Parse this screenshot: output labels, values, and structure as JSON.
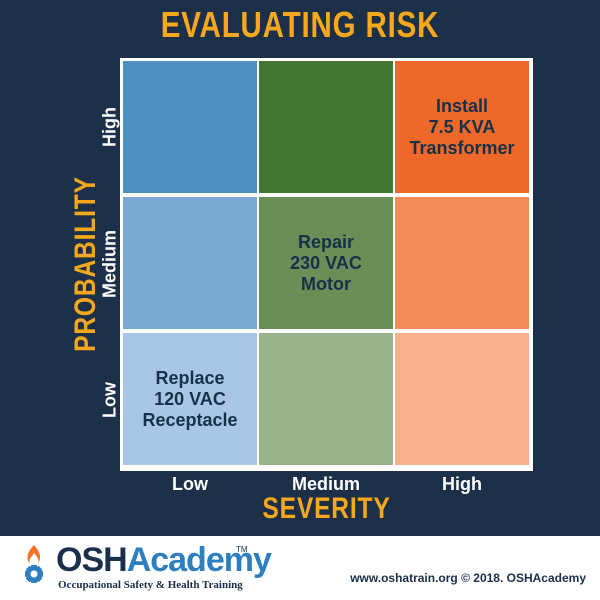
{
  "colors": {
    "background": "#1c3149",
    "accent": "#f8a81d",
    "cell_low_high": "#4d8fc1",
    "cell_med_high": "#447432",
    "cell_high_high": "#ee6929",
    "cell_low_med": "#79a8d0",
    "cell_med_med": "#6a8f56",
    "cell_high_med": "#f38b58",
    "cell_low_low": "#a8c5e4",
    "cell_med_low": "#9ab38a",
    "cell_high_low": "#f7b08b"
  },
  "header": {
    "title": "EVALUATING RISK"
  },
  "matrix": {
    "y_axis_label": "PROBABILITY",
    "x_axis_label": "SEVERITY",
    "severity_levels": [
      "Low",
      "Medium",
      "High"
    ],
    "probability_levels": [
      "High",
      "Medium",
      "Low"
    ],
    "rows": [
      {
        "probability": "High",
        "cells": [
          {
            "severity": "Low",
            "text": ""
          },
          {
            "severity": "Medium",
            "text": ""
          },
          {
            "severity": "High",
            "text": "Install\n7.5 KVA\nTransformer"
          }
        ]
      },
      {
        "probability": "Medium",
        "cells": [
          {
            "severity": "Low",
            "text": ""
          },
          {
            "severity": "Medium",
            "text": "Repair\n230 VAC\nMotor"
          },
          {
            "severity": "High",
            "text": ""
          }
        ]
      },
      {
        "probability": "Low",
        "cells": [
          {
            "severity": "Low",
            "text": "Replace\n120 VAC\nReceptacle"
          },
          {
            "severity": "Medium",
            "text": ""
          },
          {
            "severity": "High",
            "text": ""
          }
        ]
      }
    ]
  },
  "logo": {
    "icon": "gear-flame-icon",
    "name_prefix": "OSH",
    "name_suffix": "Academy",
    "trademark": "TM",
    "tagline": "Occupational Safety & Health Training"
  },
  "footer": {
    "text": "www.oshatrain.org © 2018. OSHAcademy"
  }
}
